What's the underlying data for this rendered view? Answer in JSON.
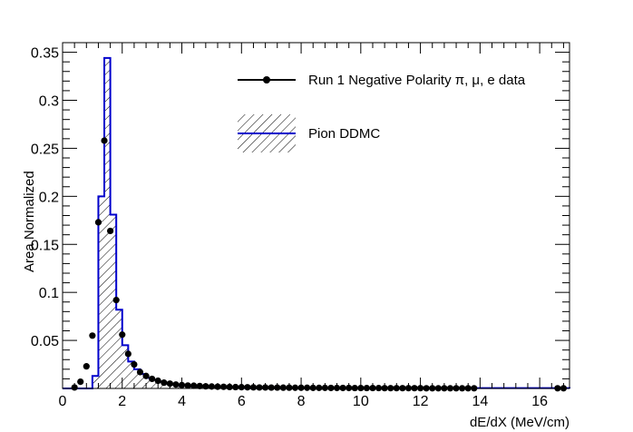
{
  "chart_data": {
    "type": "histogram",
    "xlabel": "dE/dX (MeV/cm)",
    "ylabel": "Area Normalized",
    "xlim": [
      0,
      17
    ],
    "ylim": [
      0,
      0.36
    ],
    "x_ticks": [
      0,
      2,
      4,
      6,
      8,
      10,
      12,
      14,
      16
    ],
    "y_ticks": [
      0.05,
      0.1,
      0.15,
      0.2,
      0.25,
      0.3,
      0.35
    ],
    "x_tick_labels": [
      "0",
      "2",
      "4",
      "6",
      "8",
      "10",
      "12",
      "14",
      "16"
    ],
    "y_tick_labels": [
      "0.05",
      "0.1",
      "0.15",
      "0.2",
      "0.25",
      "0.3",
      "0.35"
    ],
    "legend_position": "top-right",
    "series": [
      {
        "name": "Run 1 Negative Polarity π, μ, e data",
        "style": "markers",
        "color": "#000000",
        "x": [
          0.4,
          0.6,
          0.8,
          1.0,
          1.2,
          1.4,
          1.6,
          1.8,
          2.0,
          2.2,
          2.4,
          2.6,
          2.8,
          3.0,
          3.2,
          3.4,
          3.6,
          3.8,
          4.0,
          4.2,
          4.4,
          4.6,
          4.8,
          5.0,
          5.2,
          5.4,
          5.6,
          5.8,
          6.0,
          6.2,
          6.4,
          6.6,
          6.8,
          7.0,
          7.2,
          7.4,
          7.6,
          7.8,
          8.0,
          8.2,
          8.4,
          8.6,
          8.8,
          9.0,
          9.2,
          9.4,
          9.6,
          9.8,
          10.0,
          10.2,
          10.4,
          10.6,
          10.8,
          11.0,
          11.2,
          11.4,
          11.6,
          11.8,
          12.0,
          12.2,
          12.4,
          12.6,
          12.8,
          13.0,
          13.2,
          13.4,
          13.6,
          13.8,
          16.6,
          16.8
        ],
        "y": [
          0.001,
          0.007,
          0.023,
          0.055,
          0.173,
          0.258,
          0.164,
          0.092,
          0.056,
          0.036,
          0.025,
          0.017,
          0.013,
          0.01,
          0.008,
          0.006,
          0.005,
          0.004,
          0.0035,
          0.003,
          0.0028,
          0.0025,
          0.0022,
          0.002,
          0.0018,
          0.0017,
          0.0015,
          0.0014,
          0.0013,
          0.0012,
          0.0011,
          0.001,
          0.001,
          0.0009,
          0.0009,
          0.0008,
          0.0008,
          0.0007,
          0.0007,
          0.0007,
          0.0006,
          0.0006,
          0.0006,
          0.0005,
          0.0005,
          0.0005,
          0.0005,
          0.0004,
          0.0004,
          0.0004,
          0.0004,
          0.0004,
          0.0003,
          0.0003,
          0.0003,
          0.0003,
          0.0003,
          0.0003,
          0.0003,
          0.0002,
          0.0002,
          0.0002,
          0.0002,
          0.0002,
          0.0002,
          0.0002,
          0.0002,
          0.0002,
          0.0002,
          0.0002
        ]
      },
      {
        "name": "Pion DDMC",
        "style": "step-hatched",
        "color": "#0000cc",
        "bin_edges": [
          0,
          1.0,
          1.2,
          1.4,
          1.6,
          1.8,
          2.0,
          2.2,
          2.4,
          2.6,
          2.8,
          3.0,
          3.2,
          3.4,
          3.6,
          3.8,
          4.0,
          4.2,
          4.4,
          4.6,
          4.8,
          5.0,
          5.2,
          5.4,
          5.6,
          5.8,
          6.0,
          17.0
        ],
        "values": [
          0,
          0.013,
          0.2,
          0.344,
          0.181,
          0.082,
          0.045,
          0.028,
          0.02,
          0.015,
          0.011,
          0.009,
          0.007,
          0.005,
          0.004,
          0.003,
          0.003,
          0.002,
          0.002,
          0.002,
          0.0015,
          0.0012,
          0.001,
          0.0008,
          0.0006,
          0.0005,
          0.0003
        ]
      }
    ]
  }
}
